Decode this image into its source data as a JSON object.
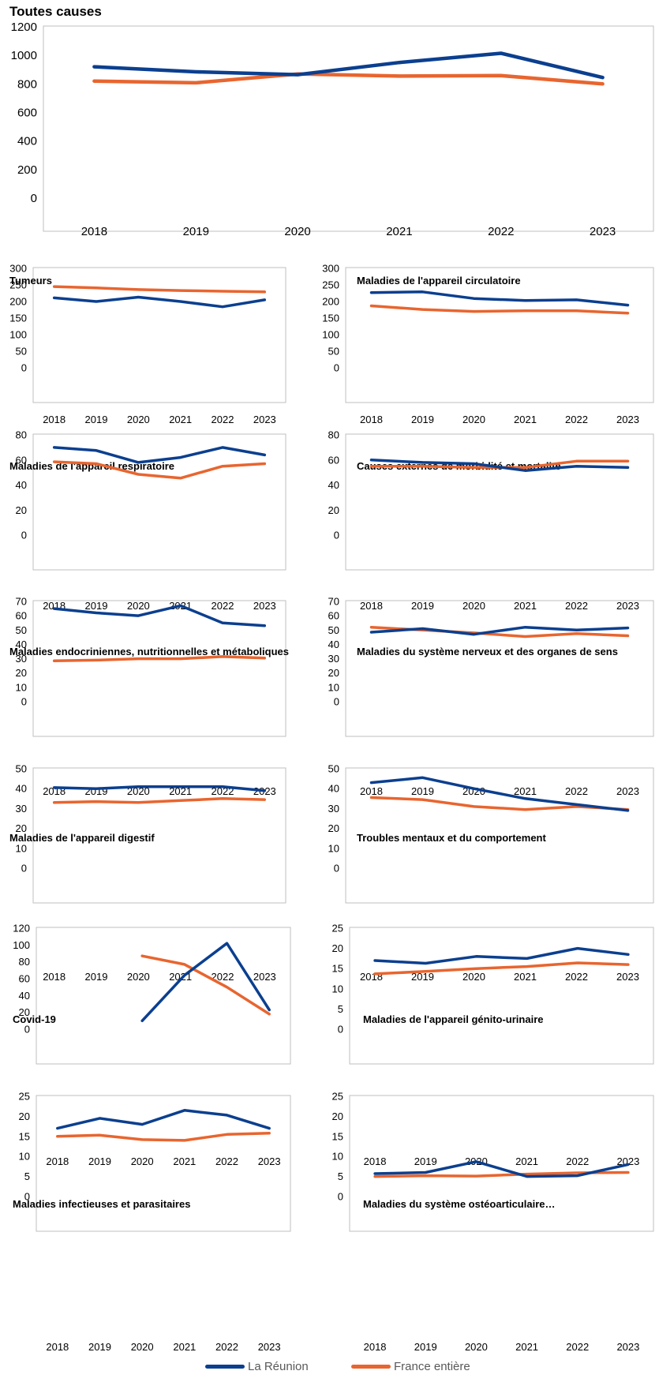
{
  "colors": {
    "series_1": "#0B3F8F",
    "series_2": "#E8652F",
    "frame": "#BFBFBF",
    "text": "#000000",
    "legend_text": "#595959"
  },
  "legend": [
    {
      "label": "La Réunion",
      "color": "#0B3F8F"
    },
    {
      "label": "France entière",
      "color": "#E8652F"
    }
  ],
  "chart_data": [
    {
      "type": "line",
      "title": "Toutes causes",
      "categories": [
        "2018",
        "2019",
        "2020",
        "2021",
        "2022",
        "2023"
      ],
      "ylim": [
        0,
        1200
      ],
      "yticks": [
        0,
        200,
        400,
        600,
        800,
        1000,
        1200
      ],
      "series": [
        {
          "name": "La Réunion",
          "values": [
            920,
            885,
            865,
            950,
            1015,
            845
          ]
        },
        {
          "name": "France entière",
          "values": [
            820,
            808,
            870,
            855,
            858,
            800
          ]
        }
      ]
    },
    {
      "type": "line",
      "title": "Tumeurs",
      "categories": [
        "2018",
        "2019",
        "2020",
        "2021",
        "2022",
        "2023"
      ],
      "ylim": [
        0,
        300
      ],
      "yticks": [
        0,
        50,
        100,
        150,
        200,
        250,
        300
      ],
      "series": [
        {
          "name": "La Réunion",
          "values": [
            211,
            200,
            213,
            200,
            184,
            205
          ]
        },
        {
          "name": "France entière",
          "values": [
            245,
            241,
            236,
            233,
            231,
            229
          ]
        }
      ]
    },
    {
      "type": "line",
      "title": "Maladies  de l'appareil circulatoire",
      "categories": [
        "2018",
        "2019",
        "2020",
        "2021",
        "2022",
        "2023"
      ],
      "ylim": [
        0,
        300
      ],
      "yticks": [
        0,
        50,
        100,
        150,
        200,
        250,
        300
      ],
      "series": [
        {
          "name": "La Réunion",
          "values": [
            227,
            229,
            209,
            203,
            205,
            189
          ]
        },
        {
          "name": "France entière",
          "values": [
            187,
            176,
            170,
            172,
            172,
            165
          ]
        }
      ]
    },
    {
      "type": "line",
      "title": "Maladies  de l'appareil respiratoire",
      "categories": [
        "2018",
        "2019",
        "2020",
        "2021",
        "2022",
        "2023"
      ],
      "ylim": [
        0,
        80
      ],
      "yticks": [
        0,
        20,
        40,
        60,
        80
      ],
      "series": [
        {
          "name": "La Réunion",
          "values": [
            70,
            67.5,
            58,
            62,
            70,
            64
          ]
        },
        {
          "name": "France entière",
          "values": [
            58.5,
            57,
            48.5,
            45.5,
            55,
            57
          ]
        }
      ]
    },
    {
      "type": "line",
      "title": "Causes  externes de morbidité  et mortalité",
      "categories": [
        "2018",
        "2019",
        "2020",
        "2021",
        "2022",
        "2023"
      ],
      "ylim": [
        0,
        80
      ],
      "yticks": [
        0,
        20,
        40,
        60,
        80
      ],
      "series": [
        {
          "name": "La Réunion",
          "values": [
            60,
            58,
            57,
            51.5,
            55,
            54
          ]
        },
        {
          "name": "France entière",
          "values": [
            55,
            55,
            54,
            54,
            59,
            59
          ]
        }
      ]
    },
    {
      "type": "line",
      "title": "Maladies  endocriniennes,  nutritionnelles  et métaboliques",
      "categories": [
        "2018",
        "2019",
        "2020",
        "2021",
        "2022",
        "2023"
      ],
      "ylim": [
        0,
        70
      ],
      "yticks": [
        0,
        10,
        20,
        30,
        40,
        50,
        60,
        70
      ],
      "series": [
        {
          "name": "La Réunion",
          "values": [
            65,
            62,
            60,
            67,
            55,
            53
          ]
        },
        {
          "name": "France entière",
          "values": [
            28.5,
            29,
            30,
            30,
            31.5,
            30.5
          ]
        }
      ]
    },
    {
      "type": "line",
      "title": "Maladies  du système  nerveux et des organes de sens",
      "categories": [
        "2018",
        "2019",
        "2020",
        "2021",
        "2022",
        "2023"
      ],
      "ylim": [
        0,
        70
      ],
      "yticks": [
        0,
        10,
        20,
        30,
        40,
        50,
        60,
        70
      ],
      "series": [
        {
          "name": "La Réunion",
          "values": [
            48.5,
            51,
            47,
            52,
            50,
            51.5
          ]
        },
        {
          "name": "France entière",
          "values": [
            52,
            50,
            48,
            45.5,
            47.5,
            46
          ]
        }
      ]
    },
    {
      "type": "line",
      "title": "Maladies  de l'appareil digestif",
      "categories": [
        "2018",
        "2019",
        "2020",
        "2021",
        "2022",
        "2023"
      ],
      "ylim": [
        0,
        50
      ],
      "yticks": [
        0,
        10,
        20,
        30,
        40,
        50
      ],
      "series": [
        {
          "name": "La Réunion",
          "values": [
            40.5,
            40,
            41,
            41,
            41,
            39
          ]
        },
        {
          "name": "France entière",
          "values": [
            33,
            33.5,
            33,
            34,
            35,
            34.5
          ]
        }
      ]
    },
    {
      "type": "line",
      "title": "Troubles  mentaux et du comportement",
      "categories": [
        "2018",
        "2019",
        "2020",
        "2021",
        "2022",
        "2023"
      ],
      "ylim": [
        0,
        50
      ],
      "yticks": [
        0,
        10,
        20,
        30,
        40,
        50
      ],
      "series": [
        {
          "name": "La Réunion",
          "values": [
            43,
            45.5,
            40,
            35,
            32,
            29
          ]
        },
        {
          "name": "France entière",
          "values": [
            35.5,
            34.5,
            31,
            29.5,
            31,
            29.5
          ]
        }
      ]
    },
    {
      "type": "line",
      "title": "Covid-19",
      "categories": [
        "2018",
        "2019",
        "2020",
        "2021",
        "2022",
        "2023"
      ],
      "ylim": [
        0,
        120
      ],
      "yticks": [
        0,
        20,
        40,
        60,
        80,
        100,
        120
      ],
      "series": [
        {
          "name": "La Réunion",
          "values": [
            null,
            null,
            10,
            64,
            102,
            23
          ]
        },
        {
          "name": "France entière",
          "values": [
            null,
            null,
            87,
            77,
            50,
            18
          ]
        }
      ]
    },
    {
      "type": "line",
      "title": "Maladies  de l'appareil  génito-urinaire",
      "categories": [
        "2018",
        "2019",
        "2020",
        "2021",
        "2022",
        "2023"
      ],
      "ylim": [
        0,
        25
      ],
      "yticks": [
        0,
        5,
        10,
        15,
        20,
        25
      ],
      "series": [
        {
          "name": "La Réunion",
          "values": [
            17,
            16.3,
            18,
            17.5,
            20,
            18.5
          ]
        },
        {
          "name": "France entière",
          "values": [
            13.7,
            14.3,
            15,
            15.5,
            16.4,
            16
          ]
        }
      ]
    },
    {
      "type": "line",
      "title": "Maladies  infectieuses  et parasitaires",
      "categories": [
        "2018",
        "2019",
        "2020",
        "2021",
        "2022",
        "2023"
      ],
      "ylim": [
        0,
        25
      ],
      "yticks": [
        0,
        5,
        10,
        15,
        20,
        25
      ],
      "series": [
        {
          "name": "La Réunion",
          "values": [
            17,
            19.5,
            18,
            21.5,
            20.3,
            17
          ]
        },
        {
          "name": "France entière",
          "values": [
            15,
            15.3,
            14.2,
            14,
            15.5,
            15.8
          ]
        }
      ]
    },
    {
      "type": "line",
      "title": "Maladies  du système  ostéoarticulaire…",
      "categories": [
        "2018",
        "2019",
        "2020",
        "2021",
        "2022",
        "2023"
      ],
      "ylim": [
        0,
        25
      ],
      "yticks": [
        0,
        5,
        10,
        15,
        20,
        25
      ],
      "series": [
        {
          "name": "La Réunion",
          "values": [
            5.7,
            6,
            8.7,
            5,
            5.2,
            8
          ]
        },
        {
          "name": "France entière",
          "values": [
            5,
            5.2,
            5.1,
            5.6,
            5.9,
            6
          ]
        }
      ]
    }
  ]
}
